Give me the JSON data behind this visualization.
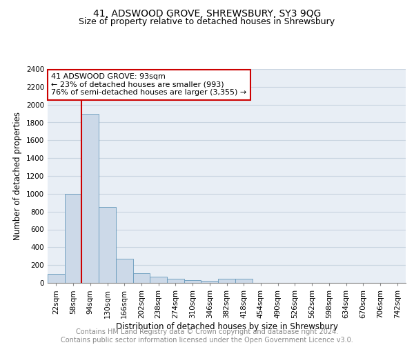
{
  "title1": "41, ADSWOOD GROVE, SHREWSBURY, SY3 9QG",
  "title2": "Size of property relative to detached houses in Shrewsbury",
  "xlabel": "Distribution of detached houses by size in Shrewsbury",
  "ylabel": "Number of detached properties",
  "bin_labels": [
    "22sqm",
    "58sqm",
    "94sqm",
    "130sqm",
    "166sqm",
    "202sqm",
    "238sqm",
    "274sqm",
    "310sqm",
    "346sqm",
    "382sqm",
    "418sqm",
    "454sqm",
    "490sqm",
    "526sqm",
    "562sqm",
    "598sqm",
    "634sqm",
    "670sqm",
    "706sqm",
    "742sqm"
  ],
  "bin_values": [
    100,
    1000,
    1900,
    850,
    270,
    110,
    70,
    50,
    30,
    25,
    50,
    50,
    0,
    0,
    0,
    0,
    0,
    0,
    0,
    0,
    0
  ],
  "bar_color": "#ccd9e8",
  "bar_edge_color": "#6699bb",
  "property_bin_index": 2,
  "annotation_line1": "41 ADSWOOD GROVE: 93sqm",
  "annotation_line2": "← 23% of detached houses are smaller (993)",
  "annotation_line3": "76% of semi-detached houses are larger (3,355) →",
  "annotation_box_color": "#ffffff",
  "annotation_box_edge": "#cc0000",
  "vline_color": "#cc0000",
  "ylim": [
    0,
    2400
  ],
  "yticks": [
    0,
    200,
    400,
    600,
    800,
    1000,
    1200,
    1400,
    1600,
    1800,
    2000,
    2200,
    2400
  ],
  "footer1": "Contains HM Land Registry data © Crown copyright and database right 2024.",
  "footer2": "Contains public sector information licensed under the Open Government Licence v3.0.",
  "bg_color": "#e8eef5",
  "grid_color": "#c8d4e0",
  "title_fontsize": 10,
  "subtitle_fontsize": 9,
  "axis_label_fontsize": 8.5,
  "tick_fontsize": 7.5,
  "annotation_fontsize": 8,
  "footer_fontsize": 7
}
